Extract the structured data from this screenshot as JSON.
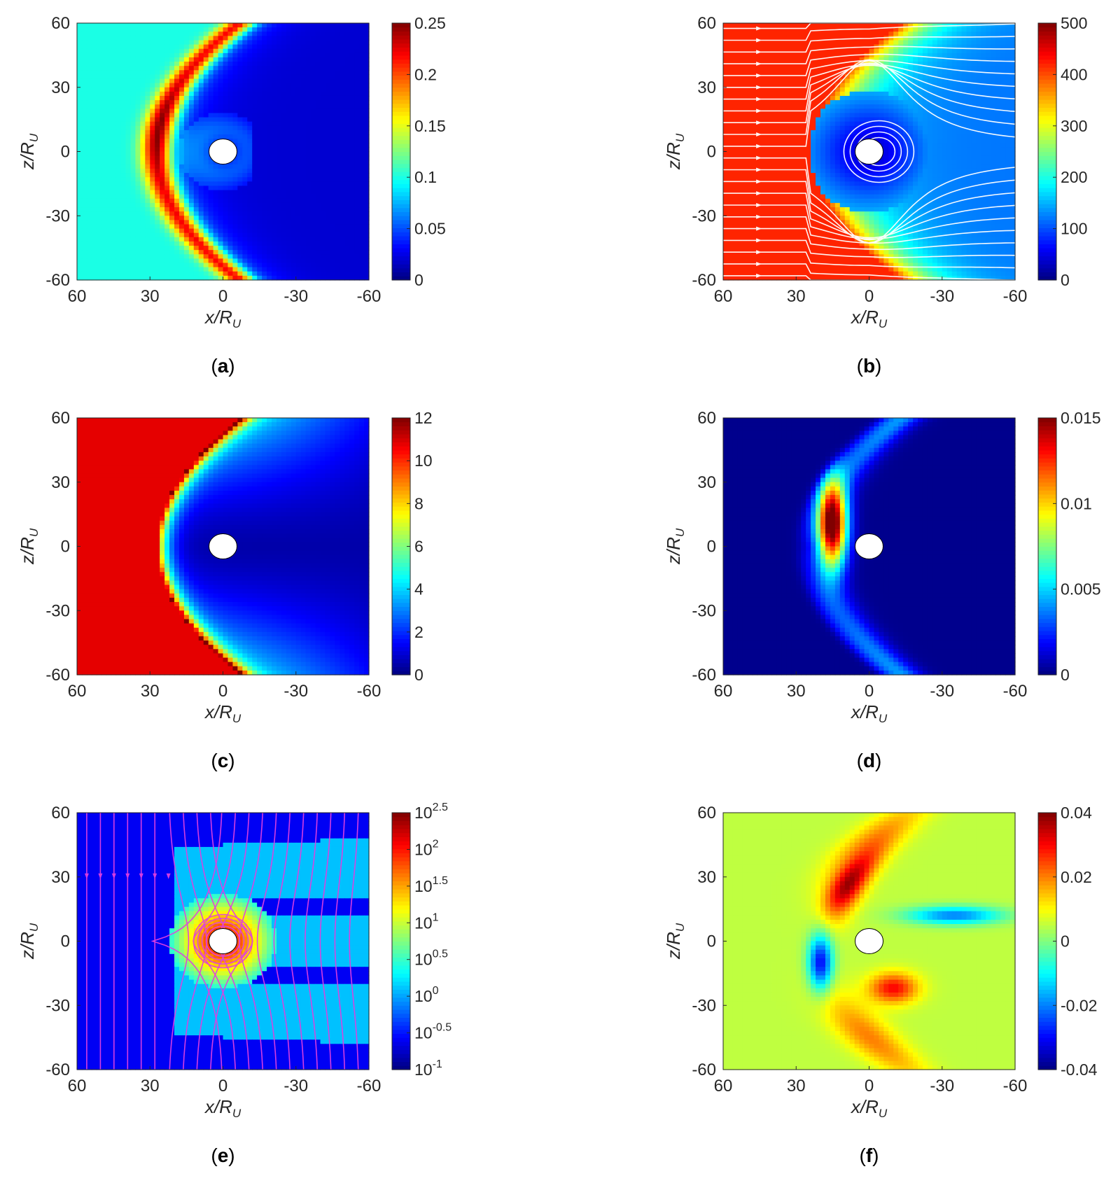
{
  "figure": {
    "panels_count": 6
  },
  "chart_data": [
    {
      "panel": "(a)",
      "type": "heatmap",
      "xlabel": "x/R",
      "xlabel_sub": "U",
      "ylabel": "z/R",
      "ylabel_sub": "U",
      "x_ticks": [
        "60",
        "30",
        "0",
        "-30",
        "-60"
      ],
      "y_ticks": [
        "60",
        "30",
        "0",
        "-30",
        "-60"
      ],
      "xlim": [
        60,
        -60
      ],
      "ylim": [
        -60,
        60
      ],
      "colorbar_ticks": [
        "0",
        "0.05",
        "0.1",
        "0.15",
        "0.2",
        "0.25"
      ],
      "colorbar_range": [
        0,
        0.25
      ],
      "colormap": "jet",
      "field": {
        "background": 0.1,
        "sheath": 0.22,
        "cavity": 0.02,
        "bowshock_nose_x": 27,
        "sheath_peak_z": 10
      },
      "streamlines": false
    },
    {
      "panel": "(b)",
      "type": "heatmap",
      "xlabel": "x/R",
      "xlabel_sub": "U",
      "ylabel": "z/R",
      "ylabel_sub": "U",
      "x_ticks": [
        "60",
        "30",
        "0",
        "-30",
        "-60"
      ],
      "y_ticks": [
        "60",
        "30",
        "0",
        "-30",
        "-60"
      ],
      "xlim": [
        60,
        -60
      ],
      "ylim": [
        -60,
        60
      ],
      "colorbar_ticks": [
        "0",
        "100",
        "200",
        "300",
        "400",
        "500"
      ],
      "colorbar_range": [
        0,
        500
      ],
      "colormap": "jet",
      "field": {
        "background": 400,
        "sheath": 300,
        "cavity": 30,
        "bowshock_nose_x": 25
      },
      "streamlines": true,
      "streamline_color": "#ffffff"
    },
    {
      "panel": "(c)",
      "type": "heatmap",
      "xlabel": "x/R",
      "xlabel_sub": "U",
      "ylabel": "z/R",
      "ylabel_sub": "U",
      "x_ticks": [
        "60",
        "30",
        "0",
        "-30",
        "-60"
      ],
      "y_ticks": [
        "60",
        "30",
        "0",
        "-30",
        "-60"
      ],
      "xlim": [
        60,
        -60
      ],
      "ylim": [
        -60,
        60
      ],
      "colorbar_ticks": [
        "0",
        "2",
        "4",
        "6",
        "8",
        "10",
        "12"
      ],
      "colorbar_range": [
        0,
        12
      ],
      "colormap": "jet",
      "field": {
        "background": 10.8,
        "sheath": 5,
        "cavity": 0.5,
        "bowshock_nose_x": 29
      },
      "streamlines": false
    },
    {
      "panel": "(d)",
      "type": "heatmap",
      "xlabel": "x/R",
      "xlabel_sub": "U",
      "ylabel": "z/R",
      "ylabel_sub": "U",
      "x_ticks": [
        "60",
        "30",
        "0",
        "-30",
        "-60"
      ],
      "y_ticks": [
        "60",
        "30",
        "0",
        "-30",
        "-60"
      ],
      "xlim": [
        60,
        -60
      ],
      "ylim": [
        -60,
        60
      ],
      "colorbar_ticks": [
        "0",
        "0.005",
        "0.01",
        "0.015"
      ],
      "colorbar_range": [
        0,
        0.015
      ],
      "colormap": "jet",
      "field": {
        "background": 0.0002,
        "sheath": 0.004,
        "peak": 0.015,
        "peak_x": 15,
        "peak_z": 10
      },
      "streamlines": false
    },
    {
      "panel": "(e)",
      "type": "heatmap",
      "xlabel": "x/R",
      "xlabel_sub": "U",
      "ylabel": "z/R",
      "ylabel_sub": "U",
      "x_ticks": [
        "60",
        "30",
        "0",
        "-30",
        "-60"
      ],
      "y_ticks": [
        "60",
        "30",
        "0",
        "-30",
        "-60"
      ],
      "xlim": [
        60,
        -60
      ],
      "ylim": [
        -60,
        60
      ],
      "colorbar_ticks": [
        {
          "base": "10",
          "exp": "-1"
        },
        {
          "base": "10",
          "exp": "-0.5"
        },
        {
          "base": "10",
          "exp": "0"
        },
        {
          "base": "10",
          "exp": "0.5"
        },
        {
          "base": "10",
          "exp": "1"
        },
        {
          "base": "10",
          "exp": "1.5"
        },
        {
          "base": "10",
          "exp": "2"
        },
        {
          "base": "10",
          "exp": "2.5"
        }
      ],
      "colorbar_range_log10": [
        -1,
        2.5
      ],
      "colorbar_scale": "log",
      "colormap": "jet",
      "field": {
        "background_log10": -0.6,
        "tail_log10": 0.1,
        "planet_log10": 2.4
      },
      "streamlines": true,
      "streamline_color": "#e040e0"
    },
    {
      "panel": "(f)",
      "type": "heatmap",
      "xlabel": "x/R",
      "xlabel_sub": "U",
      "ylabel": "z/R",
      "ylabel_sub": "U",
      "x_ticks": [
        "60",
        "30",
        "0",
        "-30",
        "-60"
      ],
      "y_ticks": [
        "60",
        "30",
        "0",
        "-30",
        "-60"
      ],
      "xlim": [
        60,
        -60
      ],
      "ylim": [
        -60,
        60
      ],
      "colorbar_ticks": [
        "-0.04",
        "-0.02",
        "0",
        "0.02",
        "0.04"
      ],
      "colorbar_range": [
        -0.04,
        0.04
      ],
      "colormap": "jet",
      "field": {
        "background": 0.005,
        "upper_lobe": 0.038,
        "lower_lobe": 0.03,
        "left_lobe": -0.035,
        "tail_lobe": -0.03
      },
      "streamlines": false
    }
  ]
}
